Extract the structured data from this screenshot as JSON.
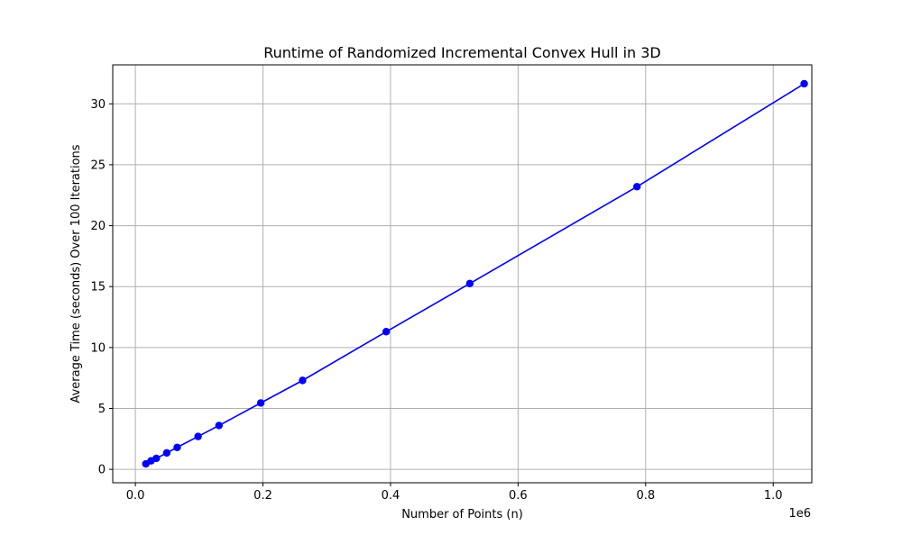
{
  "chart_data": {
    "type": "line",
    "title": "Runtime of Randomized Incremental Convex Hull in 3D",
    "xlabel": "Number of Points (n)",
    "ylabel": "Average Time (seconds) Over 100 Iterations",
    "x_offset_label": "1e6",
    "xlim": [
      -0.0355,
      1.0605
    ],
    "ylim": [
      -1.1,
      33.2
    ],
    "x_ticks": [
      0.0,
      0.2,
      0.4,
      0.6,
      0.8,
      1.0
    ],
    "x_tick_labels": [
      "0.0",
      "0.2",
      "0.4",
      "0.6",
      "0.8",
      "1.0"
    ],
    "y_ticks": [
      0,
      5,
      10,
      15,
      20,
      25,
      30
    ],
    "y_tick_labels": [
      "0",
      "5",
      "10",
      "15",
      "20",
      "25",
      "30"
    ],
    "grid": true,
    "legend": null,
    "series": [
      {
        "color": "#0000ff",
        "marker": "circle",
        "x": [
          0.016384,
          0.024576,
          0.032768,
          0.049152,
          0.065536,
          0.098304,
          0.131072,
          0.196608,
          0.262144,
          0.393216,
          0.524288,
          0.786432,
          1.048576
        ],
        "y": [
          0.45,
          0.7,
          0.9,
          1.35,
          1.8,
          2.7,
          3.6,
          5.45,
          7.3,
          11.3,
          15.25,
          23.2,
          31.65
        ]
      }
    ]
  }
}
